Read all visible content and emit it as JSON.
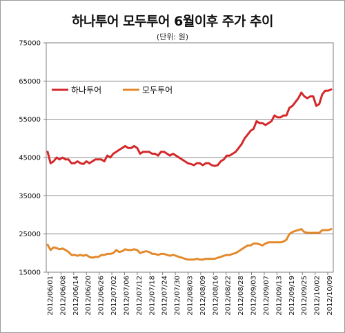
{
  "chart_data": {
    "type": "line",
    "title": "하나투어 모두투어 6월이후 주가 추이",
    "subtitle": "(단위: 원)",
    "ylim": [
      15000,
      75000
    ],
    "y_ticks": [
      "15000",
      "25000",
      "35000",
      "45000",
      "55000",
      "65000",
      "75000"
    ],
    "x_tick_labels": [
      "2012/06/01",
      "2012/06/08",
      "2012/06/14",
      "2012/06/20",
      "2012/06/26",
      "2012/07/02",
      "2012/07/06",
      "2012/07/12",
      "2012/07/18",
      "2012/07/24",
      "2012/07/30",
      "2012/08/03",
      "2012/08/09",
      "2012/08/16",
      "2012/08/22",
      "2012/08/28",
      "2012/09/03",
      "2012/09/07",
      "2012/09/13",
      "2012/09/19",
      "2012/09/25",
      "2012/10/02",
      "2012/10/09"
    ],
    "grid": true,
    "legend_position": "top-left",
    "series": [
      {
        "name": "하나투어",
        "color": "#d4282a",
        "values": [
          46500,
          43500,
          44000,
          45000,
          44500,
          45000,
          44500,
          44500,
          43500,
          43500,
          44000,
          43500,
          43300,
          44000,
          43500,
          44000,
          44500,
          44500,
          44500,
          44000,
          45500,
          45000,
          46000,
          46500,
          47000,
          47500,
          48000,
          47500,
          47500,
          48000,
          47500,
          46000,
          46500,
          46500,
          46500,
          46000,
          46000,
          45500,
          46500,
          46500,
          46000,
          45500,
          46000,
          45500,
          45000,
          44500,
          44000,
          43500,
          43300,
          43000,
          43500,
          43500,
          43000,
          43500,
          43500,
          43000,
          42800,
          43000,
          44000,
          44500,
          45500,
          45500,
          46000,
          46500,
          47500,
          48500,
          50000,
          51000,
          52000,
          52500,
          54500,
          54000,
          54000,
          53500,
          54000,
          54500,
          56000,
          55500,
          55500,
          56000,
          56000,
          58000,
          58500,
          59500,
          60500,
          62000,
          61000,
          60500,
          61000,
          61000,
          58500,
          59000,
          61500,
          62500,
          62500,
          62800
        ]
      },
      {
        "name": "모두투어",
        "color": "#e3892b",
        "values": [
          22200,
          20800,
          21500,
          21300,
          21000,
          21200,
          20800,
          20300,
          19500,
          19500,
          19300,
          19500,
          19300,
          19500,
          19000,
          18800,
          19000,
          19000,
          19500,
          19500,
          19800,
          19800,
          20000,
          20800,
          20300,
          20500,
          21000,
          20800,
          20800,
          21000,
          20800,
          20000,
          20300,
          20500,
          20300,
          19800,
          19800,
          19500,
          19800,
          19800,
          19500,
          19300,
          19500,
          19300,
          19000,
          18800,
          18500,
          18300,
          18300,
          18300,
          18500,
          18300,
          18300,
          18500,
          18500,
          18500,
          18500,
          18800,
          19000,
          19300,
          19500,
          19500,
          19800,
          20000,
          20500,
          21000,
          21500,
          22000,
          22000,
          22500,
          22500,
          22300,
          22000,
          22500,
          22800,
          22800,
          22800,
          22800,
          22800,
          23000,
          23500,
          25000,
          25500,
          25800,
          26000,
          26300,
          25500,
          25300,
          25300,
          25300,
          25300,
          25300,
          26000,
          26000,
          26000,
          26300
        ]
      }
    ]
  }
}
